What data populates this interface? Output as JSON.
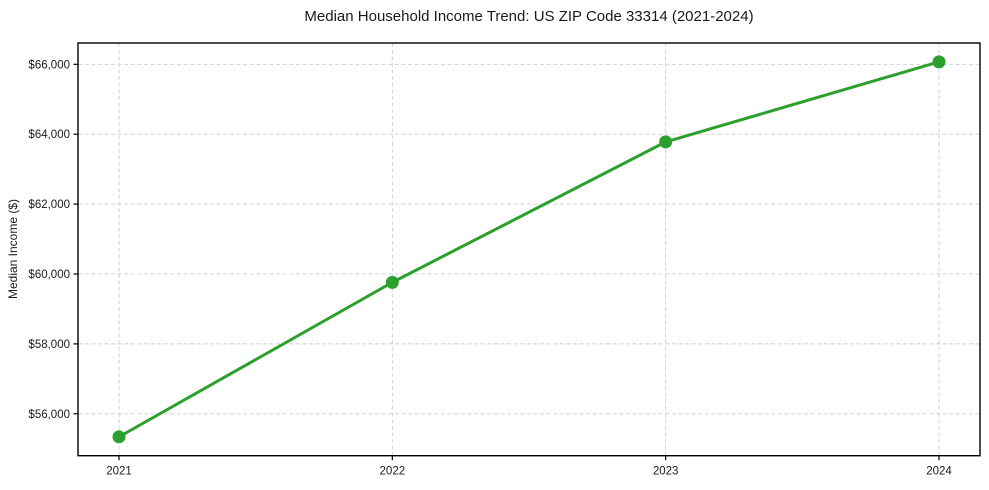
{
  "page": {
    "background": "#ffffff"
  },
  "chart_data": {
    "type": "line",
    "title": "Median Household Income Trend: US ZIP Code 33314 (2021-2024)",
    "xlabel": "",
    "ylabel": "Median Income ($)",
    "x": [
      2021,
      2022,
      2023,
      2024
    ],
    "values": [
      55340,
      59760,
      63780,
      66070
    ],
    "xtick_labels": [
      "2021",
      "2022",
      "2023",
      "2024"
    ],
    "yticks": [
      56000,
      58000,
      60000,
      62000,
      64000,
      66000
    ],
    "ytick_labels": [
      "$56,000",
      "$58,000",
      "$60,000",
      "$62,000",
      "$64,000",
      "$66,000"
    ],
    "xlim": [
      2020.85,
      2024.15
    ],
    "ylim": [
      54800,
      66610
    ],
    "grid": true,
    "grid_style": "dashed",
    "grid_color": "#cccccc",
    "spine_color": "#000000",
    "tick_color": "#000000",
    "text_color": "#1a1a1a",
    "line_color": "#2ca02c",
    "line_width": 3,
    "marker": "circle",
    "marker_size": 6.5,
    "legend_position": "none"
  }
}
